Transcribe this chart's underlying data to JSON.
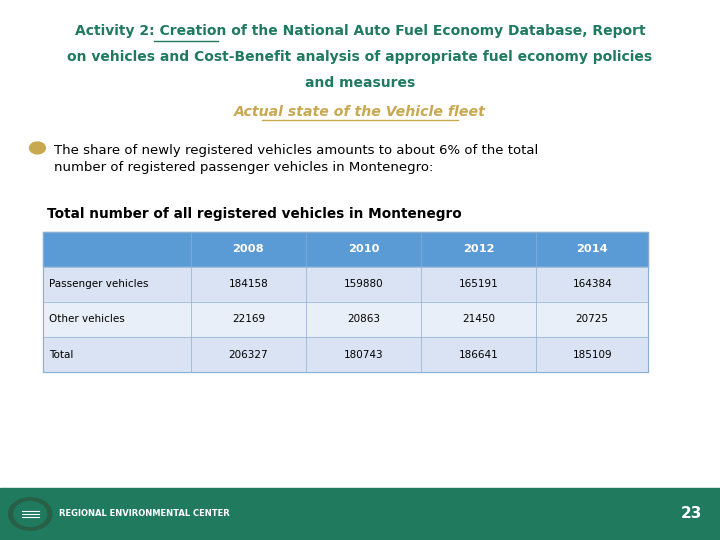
{
  "title_part1": "Activity 2:",
  "title_rest_line1": " Creation of the National Auto Fuel Economy Database, Report",
  "title_line2": "on vehicles and Cost-Benefit analysis of appropriate fuel economy policies",
  "title_line3": "and measures",
  "subtitle": "Actual state of the Vehicle fleet",
  "bullet_text": "The share of newly registered vehicles amounts to about 6% of the total\nnumber of registered passenger vehicles in Montenegro:",
  "table_title": "Total number of all registered vehicles in Montenegro",
  "table_headers": [
    "",
    "2008",
    "2010",
    "2012",
    "2014"
  ],
  "table_rows": [
    [
      "Passenger vehicles",
      "184158",
      "159880",
      "165191",
      "164384"
    ],
    [
      "Other vehicles",
      "22169",
      "20863",
      "21450",
      "20725"
    ],
    [
      "Total",
      "206327",
      "180743",
      "186641",
      "185109"
    ]
  ],
  "header_bg_color": "#5B9BD5",
  "row_colors": [
    "#DAE3F3",
    "#E9EFF8",
    "#DAE3F3"
  ],
  "title_color": "#1F7A5E",
  "subtitle_color": "#C8A951",
  "body_text_color": "#000000",
  "footer_bg_color": "#1F7A5E",
  "footer_text": "REGIONAL ENVIRONMENTAL CENTER",
  "page_number": "23",
  "background_color": "#FFFFFF"
}
